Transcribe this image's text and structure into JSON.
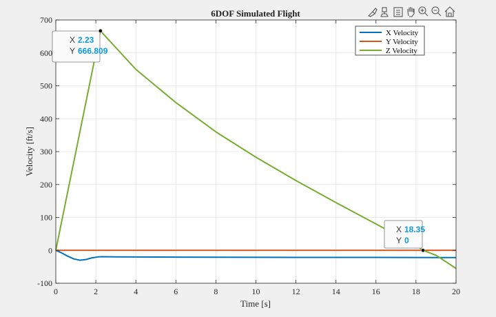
{
  "chart_data": {
    "type": "line",
    "title": "6DOF Simulated Flight",
    "xlabel": "Time [s]",
    "ylabel": "Velocity [ft/s]",
    "xlim": [
      0,
      20
    ],
    "ylim": [
      -100,
      700
    ],
    "xticks": [
      0,
      2,
      4,
      6,
      8,
      10,
      12,
      14,
      16,
      18,
      20
    ],
    "yticks": [
      -100,
      0,
      100,
      200,
      300,
      400,
      500,
      600,
      700
    ],
    "grid": true,
    "legend_position": "top-right",
    "series": [
      {
        "name": "X Velocity",
        "color": "#0072bd",
        "x": [
          0,
          0.3,
          0.6,
          0.9,
          1.2,
          1.5,
          1.8,
          2.1,
          2.3,
          3,
          5,
          8,
          12,
          16,
          20
        ],
        "y": [
          0,
          -8,
          -18,
          -26,
          -30,
          -28,
          -23,
          -20,
          -19.5,
          -20,
          -20.5,
          -21,
          -21.5,
          -21.5,
          -22
        ]
      },
      {
        "name": "Y Velocity",
        "color": "#d95319",
        "x": [
          0,
          20
        ],
        "y": [
          0,
          0
        ]
      },
      {
        "name": "Z Velocity",
        "color": "#77ac30",
        "x": [
          0,
          2.23,
          4,
          6,
          8,
          10,
          12,
          14,
          16,
          18,
          18.35,
          19,
          20
        ],
        "y": [
          0,
          666.809,
          550,
          449,
          360,
          283,
          212,
          145,
          80,
          15,
          0,
          -15,
          -55
        ]
      }
    ],
    "annotations": [
      {
        "x": 2.23,
        "y": 666.809,
        "x_label": "X",
        "y_label": "Y",
        "x_text": "2.23",
        "y_text": "666.809"
      },
      {
        "x": 18.35,
        "y": 0,
        "x_label": "X",
        "y_label": "Y",
        "x_text": "18.35",
        "y_text": "0"
      }
    ]
  },
  "toolbar": {
    "icons": [
      "brush-icon",
      "data-tips-icon",
      "legend-icon",
      "pan-icon",
      "zoom-in-icon",
      "zoom-out-icon",
      "home-icon"
    ]
  }
}
